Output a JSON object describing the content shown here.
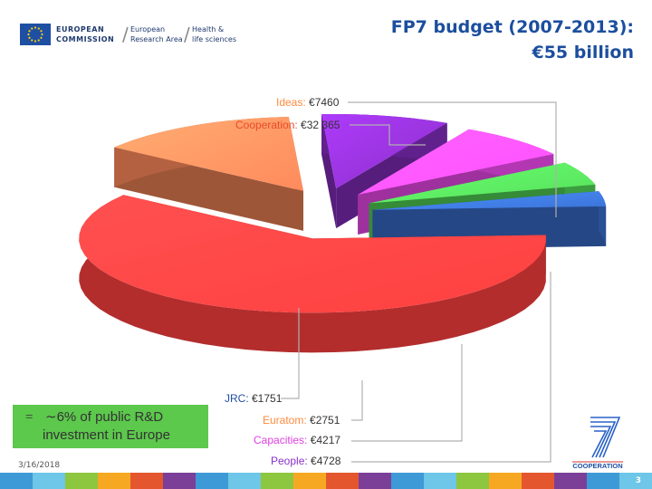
{
  "header": {
    "org_line1": "EUROPEAN",
    "org_line2": "COMMISSION",
    "area_line1": "European",
    "area_line2": "Research Area",
    "theme_line1": "Health &",
    "theme_line2": "life sciences"
  },
  "title_line1": "FP7 budget (2007-2013):",
  "title_line2": "€55 billion",
  "chart_data": {
    "type": "pie",
    "categories": [
      "Ideas",
      "Cooperation",
      "JRC",
      "Euratom",
      "Capacities",
      "People"
    ],
    "values": [
      7460,
      32365,
      1751,
      2751,
      4217,
      4728
    ],
    "labels": [
      {
        "name": "Ideas",
        "value_text": "€7460"
      },
      {
        "name": "Cooperation",
        "value_text": "€32 365"
      },
      {
        "name": "JRC",
        "value_text": "€1751"
      },
      {
        "name": "Euratom",
        "value_text": "€2751"
      },
      {
        "name": "Capacities",
        "value_text": "€4217"
      },
      {
        "name": "People",
        "value_text": "€4728"
      }
    ],
    "colors": {
      "Ideas": "#ff8a5c",
      "Cooperation": "#ff4040",
      "JRC": "#3b73d6",
      "Euratom": "#55e05a",
      "Capacities": "#ff4fff",
      "People": "#8b2fc9"
    },
    "label_colors": {
      "Ideas": "#ff8a3d",
      "Cooperation": "#e84a2a",
      "JRC": "#1f4fa3",
      "Euratom": "#ff8a3d",
      "Capacities": "#e040e0",
      "People": "#8b2fc9"
    },
    "style": "exploded 3D pie"
  },
  "note": {
    "eq": "=",
    "line1": "∼6% of public R&D",
    "line2": "investment in Europe"
  },
  "date": "3/16/2018",
  "fp7_logo_text": "COOPERATION",
  "page_number": "3",
  "footer_colors": [
    "#3e9ad6",
    "#6ec6e8",
    "#8dc63f",
    "#f7a823",
    "#e4572e",
    "#7b3f98",
    "#3e9ad6",
    "#6ec6e8",
    "#8dc63f",
    "#f7a823",
    "#e4572e",
    "#7b3f98",
    "#3e9ad6",
    "#6ec6e8",
    "#8dc63f",
    "#f7a823",
    "#e4572e",
    "#7b3f98",
    "#3e9ad6",
    "#6ec6e8"
  ]
}
